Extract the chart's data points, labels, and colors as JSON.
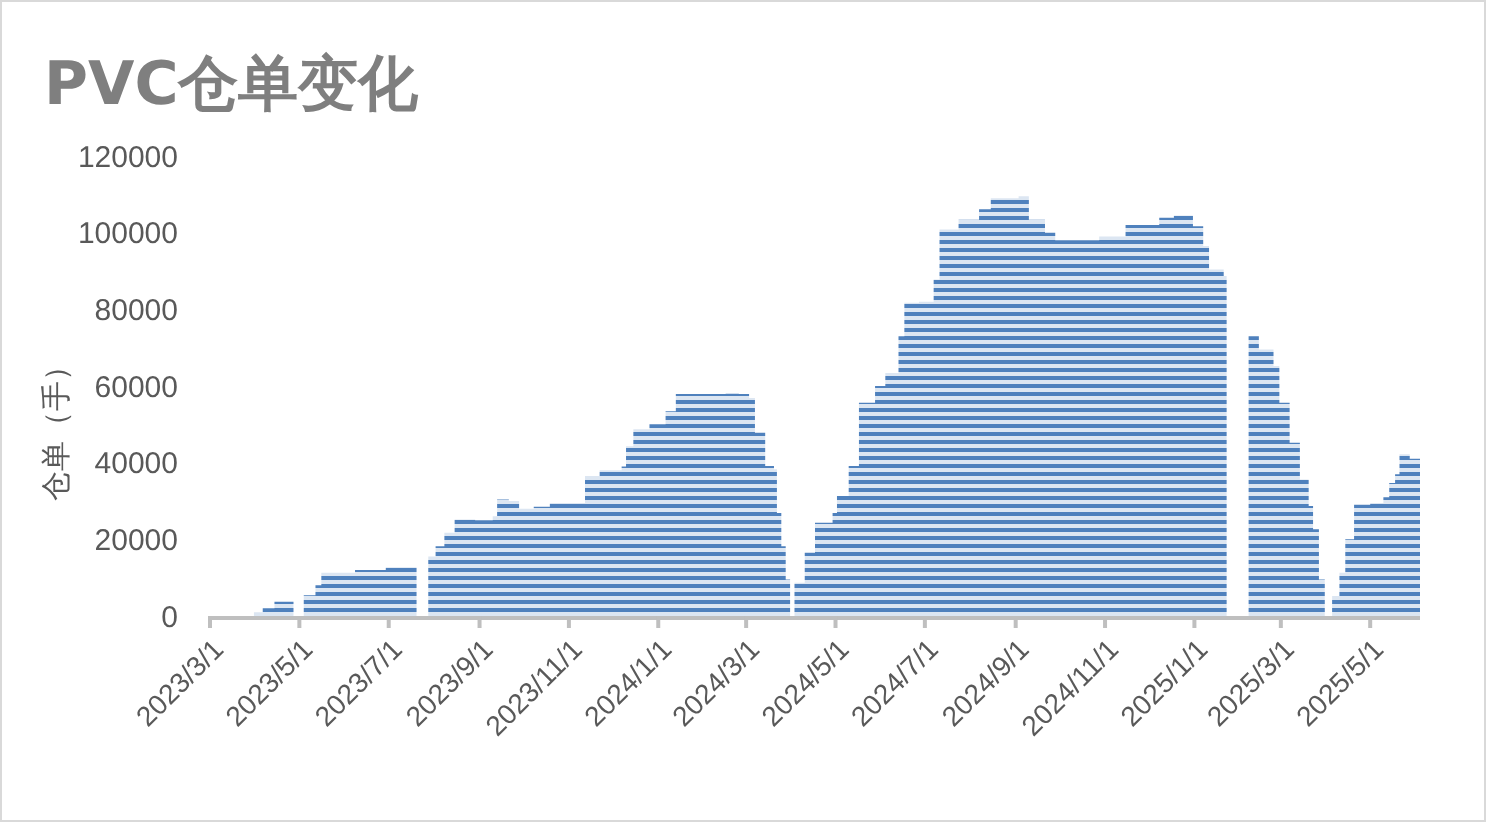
{
  "chart_data": {
    "type": "area",
    "title": "PVC仓单变化",
    "ylabel": "仓单（手）",
    "xlim": [
      "2023-03-01",
      "2025-06-04"
    ],
    "xticks": [
      {
        "value": "2023-03-01",
        "label": "2023/3/1"
      },
      {
        "value": "2023-05-01",
        "label": "2023/5/1"
      },
      {
        "value": "2023-07-01",
        "label": "2023/7/1"
      },
      {
        "value": "2023-09-01",
        "label": "2023/9/1"
      },
      {
        "value": "2023-11-01",
        "label": "2023/11/1"
      },
      {
        "value": "2024-01-01",
        "label": "2024/1/1"
      },
      {
        "value": "2024-03-01",
        "label": "2024/3/1"
      },
      {
        "value": "2024-05-01",
        "label": "2024/5/1"
      },
      {
        "value": "2024-07-01",
        "label": "2024/7/1"
      },
      {
        "value": "2024-09-01",
        "label": "2024/9/1"
      },
      {
        "value": "2024-11-01",
        "label": "2024/11/1"
      },
      {
        "value": "2025-01-01",
        "label": "2025/1/1"
      },
      {
        "value": "2025-03-01",
        "label": "2025/3/1"
      },
      {
        "value": "2025-05-01",
        "label": "2025/5/1"
      }
    ],
    "ylim": [
      0,
      120000
    ],
    "yticks": [
      0,
      20000,
      40000,
      60000,
      80000,
      100000,
      120000
    ],
    "grid": false,
    "x": [
      "2023-03-31",
      "2023-04-06",
      "2023-04-14",
      "2023-04-27",
      "2023-05-01",
      "2023-05-04",
      "2023-05-12",
      "2023-05-16",
      "2023-05-31",
      "2023-06-08",
      "2023-06-29",
      "2023-07-20",
      "2023-07-24",
      "2023-07-28",
      "2023-08-02",
      "2023-08-08",
      "2023-08-15",
      "2023-08-29",
      "2023-09-10",
      "2023-09-13",
      "2023-09-21",
      "2023-09-28",
      "2023-10-08",
      "2023-10-19",
      "2023-11-04",
      "2023-11-12",
      "2023-11-22",
      "2023-12-07",
      "2023-12-10",
      "2023-12-15",
      "2023-12-26",
      "2024-01-06",
      "2024-01-13",
      "2024-02-16",
      "2024-02-25",
      "2024-03-03",
      "2024-03-07",
      "2024-03-14",
      "2024-03-20",
      "2024-03-22",
      "2024-03-25",
      "2024-03-28",
      "2024-03-31",
      "2024-04-01",
      "2024-04-03",
      "2024-04-10",
      "2024-04-17",
      "2024-04-29",
      "2024-05-02",
      "2024-05-10",
      "2024-05-17",
      "2024-05-28",
      "2024-06-04",
      "2024-06-13",
      "2024-06-17",
      "2024-06-27",
      "2024-07-07",
      "2024-07-11",
      "2024-07-24",
      "2024-08-07",
      "2024-08-15",
      "2024-09-03",
      "2024-09-10",
      "2024-09-21",
      "2024-09-28",
      "2024-10-14",
      "2024-10-28",
      "2024-11-15",
      "2024-12-08",
      "2024-12-18",
      "2024-12-31",
      "2025-01-07",
      "2025-01-11",
      "2025-01-21",
      "2025-01-23",
      "2025-02-01",
      "2025-02-07",
      "2025-02-14",
      "2025-02-24",
      "2025-02-28",
      "2025-03-07",
      "2025-03-14",
      "2025-03-20",
      "2025-03-23",
      "2025-03-27",
      "2025-03-31",
      "2025-04-02",
      "2025-04-05",
      "2025-04-10",
      "2025-04-14",
      "2025-04-20",
      "2025-05-01",
      "2025-05-10",
      "2025-05-14",
      "2025-05-18",
      "2025-05-21",
      "2025-05-28",
      "2025-06-04"
    ],
    "series": [
      {
        "color": "#4f81bd",
        "values": [
          1000,
          2000,
          3700,
          4500,
          null,
          5400,
          8000,
          11300,
          11300,
          12000,
          12700,
          13400,
          null,
          15500,
          18200,
          21700,
          25200,
          25000,
          26000,
          30400,
          30000,
          28000,
          28500,
          29500,
          29500,
          36500,
          38000,
          39000,
          44300,
          48700,
          50000,
          53400,
          57900,
          58000,
          57900,
          56900,
          47800,
          39100,
          38300,
          26900,
          18200,
          9500,
          2000,
          null,
          8700,
          16500,
          24300,
          26900,
          31300,
          39100,
          55600,
          60000,
          63400,
          73000,
          81700,
          82000,
          87800,
          100800,
          103400,
          106100,
          109000,
          109500,
          103400,
          100000,
          98000,
          98000,
          99000,
          102000,
          103900,
          104500,
          101700,
          96500,
          90400,
          88700,
          82600,
          null,
          73000,
          69500,
          65200,
          55600,
          45200,
          35600,
          28700,
          22600,
          9500,
          5700,
          null,
          5200,
          11300,
          20000,
          29000,
          29500,
          31000,
          34700,
          37000,
          42200,
          41000,
          40000
        ]
      }
    ]
  }
}
